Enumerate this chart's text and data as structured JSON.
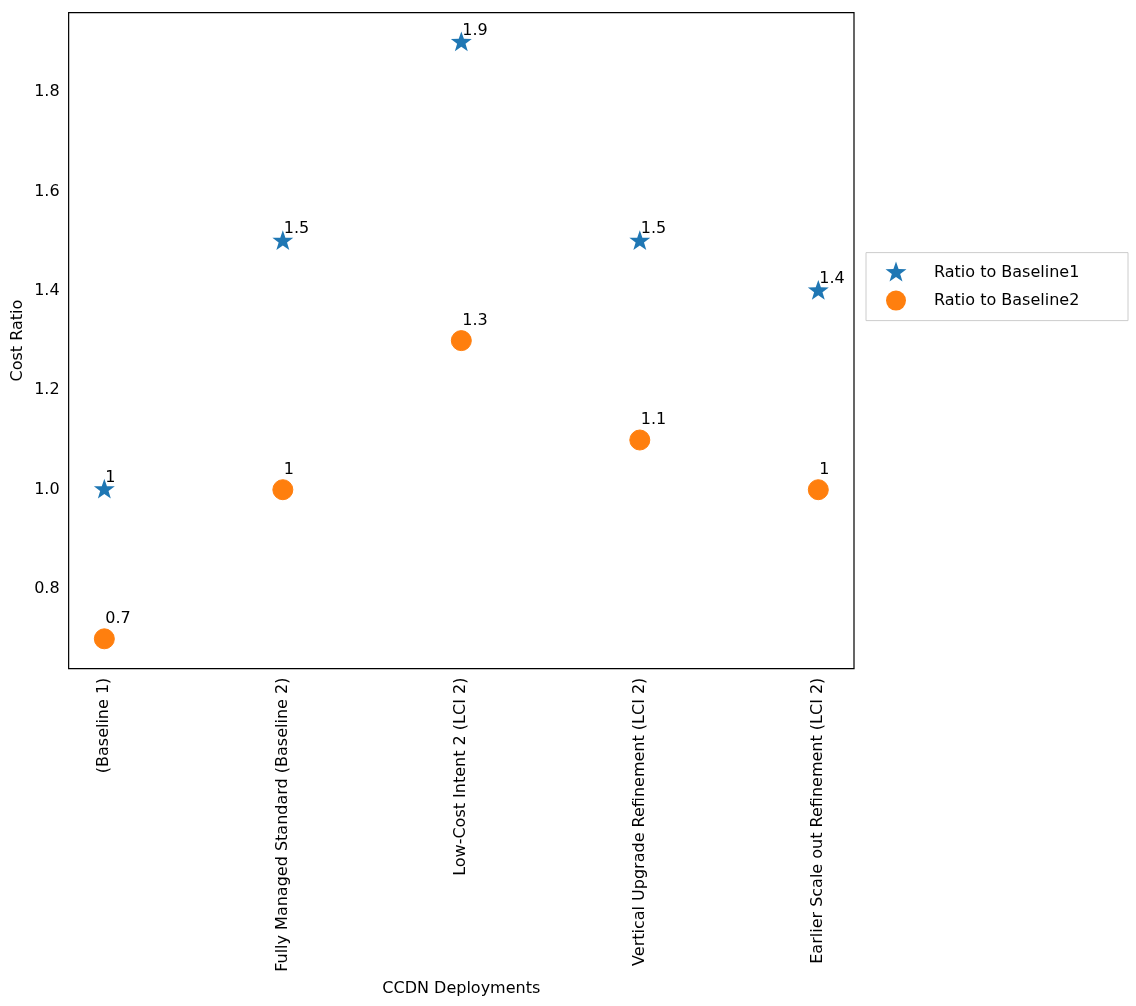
{
  "chart_data": {
    "type": "scatter",
    "xlabel": "CCDN Deployments",
    "ylabel": "Cost Ratio",
    "categories": [
      "(Baseline 1)",
      "Fully Managed Standard (Baseline 2)",
      "Low-Cost Intent 2 (LCI 2)",
      "Vertical Upgrade Refinement (LCI 2)",
      "Earlier Scale out Refinement (LCI 2)"
    ],
    "series": [
      {
        "name": "Ratio to Baseline1",
        "color": "#1f77b4",
        "marker": "star",
        "values": [
          1,
          1.5,
          1.9,
          1.5,
          1.4
        ]
      },
      {
        "name": "Ratio to Baseline2",
        "color": "#ff7f0e",
        "marker": "circle",
        "values": [
          0.7,
          1,
          1.3,
          1.1,
          1
        ]
      }
    ],
    "ylim": [
      0.64,
      1.96
    ],
    "yticks": [
      {
        "value": 0.8,
        "label": "0.8"
      },
      {
        "value": 1,
        "label": "1.0"
      },
      {
        "value": 1.2,
        "label": "1.2"
      },
      {
        "value": 1.4,
        "label": "1.4"
      },
      {
        "value": 1.6,
        "label": "1.6"
      },
      {
        "value": 1.8,
        "label": "1.8"
      }
    ],
    "data_labels": true,
    "legend": "right",
    "grid": false
  }
}
